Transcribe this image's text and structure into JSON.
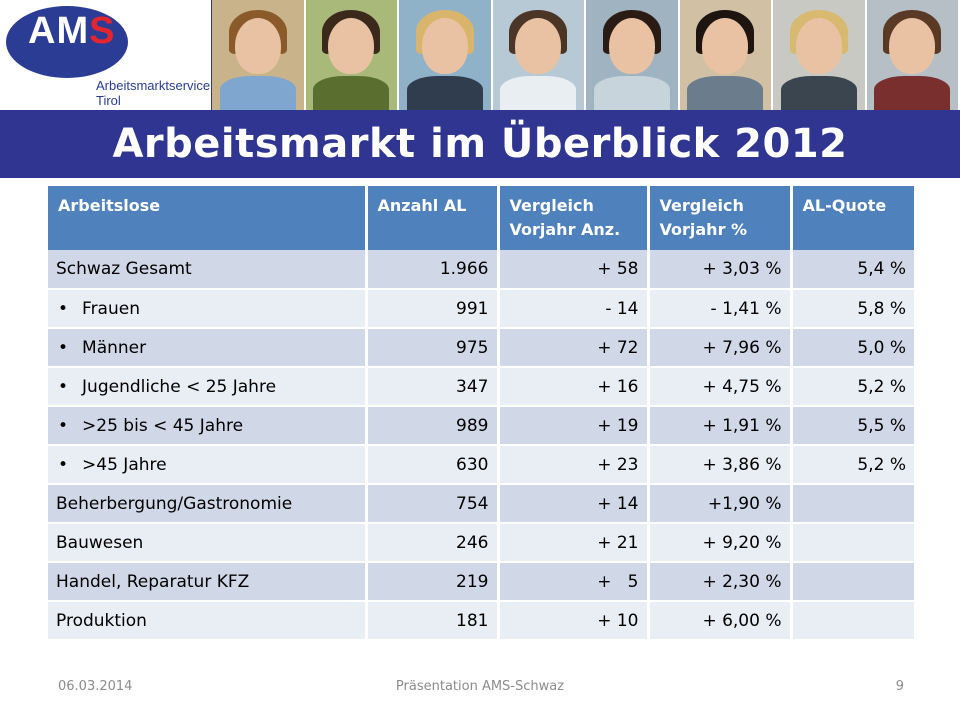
{
  "logo": {
    "mark_a": "AM",
    "mark_s": "S",
    "line1": "Arbeitsmarktservice",
    "line2": "Tirol",
    "colors": {
      "ellipse": "#2a3c94",
      "accent": "#e2262f"
    }
  },
  "photos": [
    {
      "icon": "mother-child-photo"
    },
    {
      "icon": "woman-guitar-photo"
    },
    {
      "icon": "businesswoman-photo"
    },
    {
      "icon": "woman-binoculars-photo"
    },
    {
      "icon": "woman-phone-photo"
    },
    {
      "icon": "smiling-woman-photo"
    },
    {
      "icon": "blonde-woman-photo"
    },
    {
      "icon": "young-woman-photo"
    }
  ],
  "title": "Arbeitsmarkt im Überblick 2012",
  "table": {
    "headers": [
      "Arbeitslose",
      "Anzahl AL",
      "Vergleich Vorjahr Anz.",
      "Vergleich Vorjahr %",
      "AL-Quote"
    ],
    "rows": [
      {
        "label": "Schwaz Gesamt",
        "bullet": false,
        "anzahl": "1.966",
        "vgl_anz": "+ 58",
        "vgl_pct": "+ 3,03 %",
        "quote": "5,4 %"
      },
      {
        "label": "Frauen",
        "bullet": true,
        "anzahl": "991",
        "vgl_anz": "- 14",
        "vgl_pct": "- 1,41 %",
        "quote": "5,8 %"
      },
      {
        "label": "Männer",
        "bullet": true,
        "anzahl": "975",
        "vgl_anz": "+ 72",
        "vgl_pct": "+ 7,96 %",
        "quote": "5,0 %"
      },
      {
        "label": "Jugendliche < 25 Jahre",
        "bullet": true,
        "anzahl": "347",
        "vgl_anz": "+ 16",
        "vgl_pct": "+ 4,75 %",
        "quote": "5,2 %"
      },
      {
        "label": ">25 bis < 45 Jahre",
        "bullet": true,
        "anzahl": "989",
        "vgl_anz": "+ 19",
        "vgl_pct": "+ 1,91 %",
        "quote": "5,5 %"
      },
      {
        "label": ">45 Jahre",
        "bullet": true,
        "anzahl": "630",
        "vgl_anz": "+ 23",
        "vgl_pct": "+ 3,86 %",
        "quote": "5,2 %"
      },
      {
        "label": "Beherbergung/Gastronomie",
        "bullet": false,
        "anzahl": "754",
        "vgl_anz": "+ 14",
        "vgl_pct": "+1,90 %",
        "quote": ""
      },
      {
        "label": "Bauwesen",
        "bullet": false,
        "anzahl": "246",
        "vgl_anz": "+ 21",
        "vgl_pct": "+ 9,20 %",
        "quote": ""
      },
      {
        "label": "Handel, Reparatur KFZ",
        "bullet": false,
        "anzahl": "219",
        "vgl_anz": "+   5",
        "vgl_pct": "+ 2,30 %",
        "quote": ""
      },
      {
        "label": "Produktion",
        "bullet": false,
        "anzahl": "181",
        "vgl_anz": "+ 10",
        "vgl_pct": "+ 6,00 %",
        "quote": ""
      }
    ],
    "colors": {
      "header": "#4f81bd",
      "row_odd": "#d0d8e8",
      "row_even": "#e9edf4"
    }
  },
  "footer": {
    "date": "06.03.2014",
    "center": "Präsentation AMS-Schwaz",
    "page": "9"
  },
  "title_bar_color": "#2f3590"
}
